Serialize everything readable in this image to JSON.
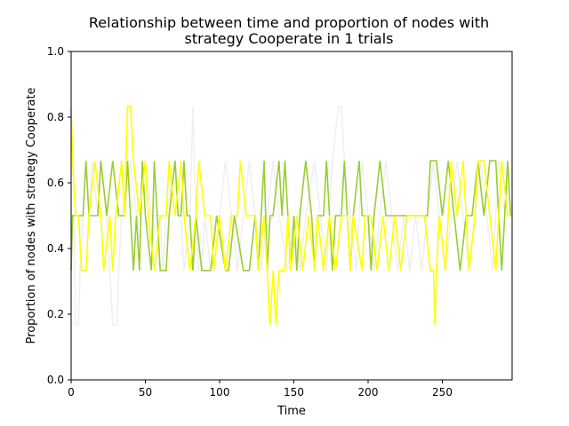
{
  "chart_data": {
    "type": "line",
    "title_lines": [
      "Relationship between time and proportion of nodes with",
      "strategy Cooperate in 1 trials"
    ],
    "xlabel": "Time",
    "ylabel": "Proportion of nodes with strategy Cooperate",
    "xlim": [
      0,
      297
    ],
    "ylim": [
      0,
      1.0
    ],
    "xticks": [
      0,
      50,
      100,
      150,
      200,
      250
    ],
    "yticks": [
      0.0,
      0.2,
      0.4,
      0.6,
      0.8,
      1.0
    ],
    "ytick_labels": [
      "0.0",
      "0.2",
      "0.4",
      "0.6",
      "0.8",
      "1.0"
    ],
    "grid": false,
    "series": [
      {
        "color": "#f0f0f0",
        "points": [
          [
            0,
            0.5
          ],
          [
            2,
            0.5
          ],
          [
            3,
            0.167
          ],
          [
            5,
            0.167
          ],
          [
            6,
            0.333
          ],
          [
            8,
            0.5
          ],
          [
            10,
            0.667
          ],
          [
            12,
            0.5
          ],
          [
            14,
            0.667
          ],
          [
            18,
            0.5
          ],
          [
            20,
            0.667
          ],
          [
            24,
            0.5
          ],
          [
            26,
            0.333
          ],
          [
            28,
            0.167
          ],
          [
            31,
            0.167
          ],
          [
            32,
            0.333
          ],
          [
            34,
            0.5
          ],
          [
            40,
            0.667
          ],
          [
            44,
            0.5
          ],
          [
            50,
            0.667
          ],
          [
            54,
            0.5
          ],
          [
            60,
            0.5
          ],
          [
            62,
            0.333
          ],
          [
            64,
            0.5
          ],
          [
            70,
            0.667
          ],
          [
            74,
            0.5
          ],
          [
            76,
            0.333
          ],
          [
            80,
            0.5
          ],
          [
            82,
            0.833
          ],
          [
            84,
            0.5
          ],
          [
            86,
            0.333
          ],
          [
            88,
            0.333
          ],
          [
            90,
            0.5
          ],
          [
            94,
            0.333
          ],
          [
            98,
            0.5
          ],
          [
            100,
            0.5
          ],
          [
            104,
            0.667
          ],
          [
            108,
            0.5
          ],
          [
            112,
            0.333
          ],
          [
            116,
            0.5
          ],
          [
            120,
            0.667
          ],
          [
            124,
            0.5
          ],
          [
            128,
            0.333
          ],
          [
            132,
            0.5
          ],
          [
            136,
            0.667
          ],
          [
            140,
            0.5
          ],
          [
            146,
            0.333
          ],
          [
            150,
            0.5
          ],
          [
            154,
            0.333
          ],
          [
            158,
            0.5
          ],
          [
            164,
            0.667
          ],
          [
            168,
            0.5
          ],
          [
            172,
            0.333
          ],
          [
            176,
            0.667
          ],
          [
            180,
            0.833
          ],
          [
            182,
            0.833
          ],
          [
            184,
            0.667
          ],
          [
            188,
            0.5
          ],
          [
            192,
            0.333
          ],
          [
            196,
            0.667
          ],
          [
            200,
            0.5
          ],
          [
            204,
            0.333
          ],
          [
            208,
            0.5
          ],
          [
            212,
            0.667
          ],
          [
            216,
            0.5
          ],
          [
            220,
            0.333
          ],
          [
            224,
            0.5
          ],
          [
            228,
            0.333
          ],
          [
            232,
            0.5
          ],
          [
            236,
            0.333
          ],
          [
            240,
            0.5
          ],
          [
            244,
            0.667
          ],
          [
            248,
            0.5
          ],
          [
            252,
            0.333
          ],
          [
            256,
            0.5
          ],
          [
            260,
            0.667
          ],
          [
            264,
            0.5
          ],
          [
            268,
            0.333
          ],
          [
            272,
            0.5
          ],
          [
            276,
            0.667
          ],
          [
            280,
            0.5
          ],
          [
            284,
            0.333
          ],
          [
            288,
            0.667
          ],
          [
            292,
            0.5
          ],
          [
            296,
            0.667
          ]
        ]
      },
      {
        "color": "#9acd32",
        "points": [
          [
            0,
            0.333
          ],
          [
            1,
            0.5
          ],
          [
            4,
            0.5
          ],
          [
            8,
            0.5
          ],
          [
            10,
            0.667
          ],
          [
            12,
            0.5
          ],
          [
            18,
            0.5
          ],
          [
            20,
            0.667
          ],
          [
            24,
            0.5
          ],
          [
            28,
            0.667
          ],
          [
            32,
            0.5
          ],
          [
            36,
            0.5
          ],
          [
            38,
            0.667
          ],
          [
            40,
            0.5
          ],
          [
            42,
            0.333
          ],
          [
            44,
            0.5
          ],
          [
            46,
            0.333
          ],
          [
            48,
            0.667
          ],
          [
            50,
            0.5
          ],
          [
            54,
            0.333
          ],
          [
            56,
            0.667
          ],
          [
            58,
            0.5
          ],
          [
            60,
            0.333
          ],
          [
            64,
            0.333
          ],
          [
            66,
            0.5
          ],
          [
            70,
            0.667
          ],
          [
            72,
            0.5
          ],
          [
            74,
            0.5
          ],
          [
            76,
            0.667
          ],
          [
            78,
            0.5
          ],
          [
            80,
            0.5
          ],
          [
            82,
            0.333
          ],
          [
            84,
            0.5
          ],
          [
            88,
            0.333
          ],
          [
            94,
            0.333
          ],
          [
            98,
            0.5
          ],
          [
            104,
            0.333
          ],
          [
            106,
            0.333
          ],
          [
            110,
            0.5
          ],
          [
            116,
            0.333
          ],
          [
            120,
            0.333
          ],
          [
            124,
            0.5
          ],
          [
            126,
            0.333
          ],
          [
            128,
            0.5
          ],
          [
            130,
            0.667
          ],
          [
            132,
            0.333
          ],
          [
            134,
            0.5
          ],
          [
            136,
            0.5
          ],
          [
            140,
            0.667
          ],
          [
            142,
            0.5
          ],
          [
            144,
            0.667
          ],
          [
            146,
            0.5
          ],
          [
            148,
            0.333
          ],
          [
            150,
            0.5
          ],
          [
            152,
            0.333
          ],
          [
            154,
            0.5
          ],
          [
            158,
            0.667
          ],
          [
            162,
            0.5
          ],
          [
            164,
            0.333
          ],
          [
            166,
            0.5
          ],
          [
            170,
            0.5
          ],
          [
            172,
            0.667
          ],
          [
            174,
            0.5
          ],
          [
            176,
            0.333
          ],
          [
            178,
            0.5
          ],
          [
            182,
            0.5
          ],
          [
            184,
            0.667
          ],
          [
            186,
            0.5
          ],
          [
            188,
            0.333
          ],
          [
            190,
            0.5
          ],
          [
            194,
            0.667
          ],
          [
            196,
            0.5
          ],
          [
            200,
            0.5
          ],
          [
            202,
            0.333
          ],
          [
            204,
            0.5
          ],
          [
            208,
            0.667
          ],
          [
            212,
            0.5
          ],
          [
            216,
            0.5
          ],
          [
            220,
            0.5
          ],
          [
            224,
            0.5
          ],
          [
            228,
            0.5
          ],
          [
            232,
            0.5
          ],
          [
            236,
            0.5
          ],
          [
            240,
            0.5
          ],
          [
            242,
            0.667
          ],
          [
            246,
            0.667
          ],
          [
            250,
            0.5
          ],
          [
            254,
            0.667
          ],
          [
            258,
            0.5
          ],
          [
            262,
            0.333
          ],
          [
            266,
            0.5
          ],
          [
            270,
            0.5
          ],
          [
            274,
            0.667
          ],
          [
            278,
            0.5
          ],
          [
            282,
            0.667
          ],
          [
            286,
            0.667
          ],
          [
            290,
            0.333
          ],
          [
            292,
            0.5
          ],
          [
            294,
            0.667
          ],
          [
            296,
            0.5
          ]
        ]
      },
      {
        "color": "#ffff00",
        "points": [
          [
            0,
            0.833
          ],
          [
            1,
            0.667
          ],
          [
            3,
            0.5
          ],
          [
            5,
            0.5
          ],
          [
            7,
            0.333
          ],
          [
            10,
            0.333
          ],
          [
            12,
            0.5
          ],
          [
            16,
            0.667
          ],
          [
            20,
            0.5
          ],
          [
            22,
            0.333
          ],
          [
            26,
            0.5
          ],
          [
            28,
            0.333
          ],
          [
            30,
            0.5
          ],
          [
            34,
            0.667
          ],
          [
            36,
            0.5
          ],
          [
            38,
            0.833
          ],
          [
            40,
            0.833
          ],
          [
            42,
            0.667
          ],
          [
            46,
            0.5
          ],
          [
            50,
            0.667
          ],
          [
            52,
            0.5
          ],
          [
            56,
            0.333
          ],
          [
            60,
            0.5
          ],
          [
            64,
            0.5
          ],
          [
            66,
            0.667
          ],
          [
            70,
            0.5
          ],
          [
            74,
            0.667
          ],
          [
            76,
            0.5
          ],
          [
            80,
            0.333
          ],
          [
            84,
            0.5
          ],
          [
            86,
            0.667
          ],
          [
            90,
            0.5
          ],
          [
            94,
            0.5
          ],
          [
            96,
            0.333
          ],
          [
            100,
            0.5
          ],
          [
            104,
            0.333
          ],
          [
            108,
            0.5
          ],
          [
            112,
            0.5
          ],
          [
            114,
            0.667
          ],
          [
            118,
            0.5
          ],
          [
            124,
            0.5
          ],
          [
            126,
            0.333
          ],
          [
            130,
            0.5
          ],
          [
            132,
            0.333
          ],
          [
            134,
            0.167
          ],
          [
            136,
            0.333
          ],
          [
            138,
            0.167
          ],
          [
            140,
            0.333
          ],
          [
            144,
            0.333
          ],
          [
            146,
            0.5
          ],
          [
            148,
            0.333
          ],
          [
            152,
            0.5
          ],
          [
            156,
            0.333
          ],
          [
            160,
            0.5
          ],
          [
            164,
            0.333
          ],
          [
            166,
            0.5
          ],
          [
            170,
            0.333
          ],
          [
            174,
            0.5
          ],
          [
            178,
            0.333
          ],
          [
            182,
            0.5
          ],
          [
            186,
            0.5
          ],
          [
            188,
            0.333
          ],
          [
            190,
            0.5
          ],
          [
            196,
            0.333
          ],
          [
            198,
            0.5
          ],
          [
            202,
            0.5
          ],
          [
            206,
            0.333
          ],
          [
            210,
            0.5
          ],
          [
            214,
            0.333
          ],
          [
            218,
            0.5
          ],
          [
            222,
            0.333
          ],
          [
            226,
            0.5
          ],
          [
            230,
            0.5
          ],
          [
            234,
            0.5
          ],
          [
            238,
            0.5
          ],
          [
            242,
            0.333
          ],
          [
            244,
            0.333
          ],
          [
            245,
            0.167
          ],
          [
            246,
            0.333
          ],
          [
            248,
            0.5
          ],
          [
            252,
            0.333
          ],
          [
            256,
            0.667
          ],
          [
            260,
            0.5
          ],
          [
            264,
            0.667
          ],
          [
            268,
            0.333
          ],
          [
            272,
            0.5
          ],
          [
            274,
            0.667
          ],
          [
            278,
            0.667
          ],
          [
            282,
            0.5
          ],
          [
            286,
            0.333
          ],
          [
            290,
            0.667
          ],
          [
            294,
            0.5
          ],
          [
            296,
            0.5
          ]
        ]
      }
    ]
  }
}
